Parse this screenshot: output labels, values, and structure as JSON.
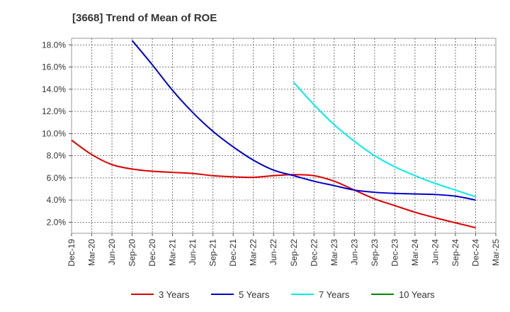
{
  "chart_data": {
    "type": "line",
    "title": "[3668]  Trend of Mean of ROE",
    "xlabel": "",
    "ylabel": "",
    "x_ticks": [
      "Dec-19",
      "Mar-20",
      "Jun-20",
      "Sep-20",
      "Dec-20",
      "Mar-21",
      "Jun-21",
      "Sep-21",
      "Dec-21",
      "Mar-22",
      "Jun-22",
      "Sep-22",
      "Dec-22",
      "Mar-23",
      "Jun-23",
      "Sep-23",
      "Dec-23",
      "Mar-24",
      "Jun-24",
      "Sep-24",
      "Dec-24",
      "Mar-25"
    ],
    "y_ticks": [
      "2.0%",
      "4.0%",
      "6.0%",
      "8.0%",
      "10.0%",
      "12.0%",
      "14.0%",
      "16.0%",
      "18.0%"
    ],
    "y_tick_values": [
      2,
      4,
      6,
      8,
      10,
      12,
      14,
      16,
      18
    ],
    "ylim": [
      1.0,
      18.6
    ],
    "grid": true,
    "legend_position": "bottom",
    "series": [
      {
        "name": "3 Years",
        "color": "#dd0000",
        "points": [
          [
            "Dec-19",
            9.4
          ],
          [
            "Mar-20",
            8.1
          ],
          [
            "Jun-20",
            7.2
          ],
          [
            "Sep-20",
            6.8
          ],
          [
            "Dec-20",
            6.6
          ],
          [
            "Mar-21",
            6.5
          ],
          [
            "Jun-21",
            6.4
          ],
          [
            "Sep-21",
            6.2
          ],
          [
            "Dec-21",
            6.1
          ],
          [
            "Mar-22",
            6.05
          ],
          [
            "Jun-22",
            6.2
          ],
          [
            "Sep-22",
            6.3
          ],
          [
            "Dec-22",
            6.2
          ],
          [
            "Mar-23",
            5.7
          ],
          [
            "Jun-23",
            4.9
          ],
          [
            "Sep-23",
            4.1
          ],
          [
            "Dec-23",
            3.5
          ],
          [
            "Mar-24",
            2.9
          ],
          [
            "Jun-24",
            2.4
          ],
          [
            "Sep-24",
            1.95
          ],
          [
            "Dec-24",
            1.5
          ]
        ]
      },
      {
        "name": "5 Years",
        "color": "#0000cc",
        "points": [
          [
            "Sep-20",
            18.4
          ],
          [
            "Dec-20",
            16.2
          ],
          [
            "Mar-21",
            13.9
          ],
          [
            "Jun-21",
            11.9
          ],
          [
            "Sep-21",
            10.2
          ],
          [
            "Dec-21",
            8.8
          ],
          [
            "Mar-22",
            7.6
          ],
          [
            "Jun-22",
            6.7
          ],
          [
            "Sep-22",
            6.2
          ],
          [
            "Dec-22",
            5.7
          ],
          [
            "Mar-23",
            5.3
          ],
          [
            "Jun-23",
            4.9
          ],
          [
            "Sep-23",
            4.7
          ],
          [
            "Dec-23",
            4.6
          ],
          [
            "Mar-24",
            4.55
          ],
          [
            "Jun-24",
            4.5
          ],
          [
            "Sep-24",
            4.35
          ],
          [
            "Dec-24",
            4.0
          ]
        ]
      },
      {
        "name": "7 Years",
        "color": "#00eeee",
        "points": [
          [
            "Sep-22",
            14.6
          ],
          [
            "Dec-22",
            12.6
          ],
          [
            "Mar-23",
            10.8
          ],
          [
            "Jun-23",
            9.3
          ],
          [
            "Sep-23",
            8.0
          ],
          [
            "Dec-23",
            7.0
          ],
          [
            "Mar-24",
            6.2
          ],
          [
            "Jun-24",
            5.5
          ],
          [
            "Sep-24",
            4.9
          ],
          [
            "Dec-24",
            4.3
          ]
        ]
      },
      {
        "name": "10 Years",
        "color": "#008800",
        "points": []
      }
    ]
  }
}
